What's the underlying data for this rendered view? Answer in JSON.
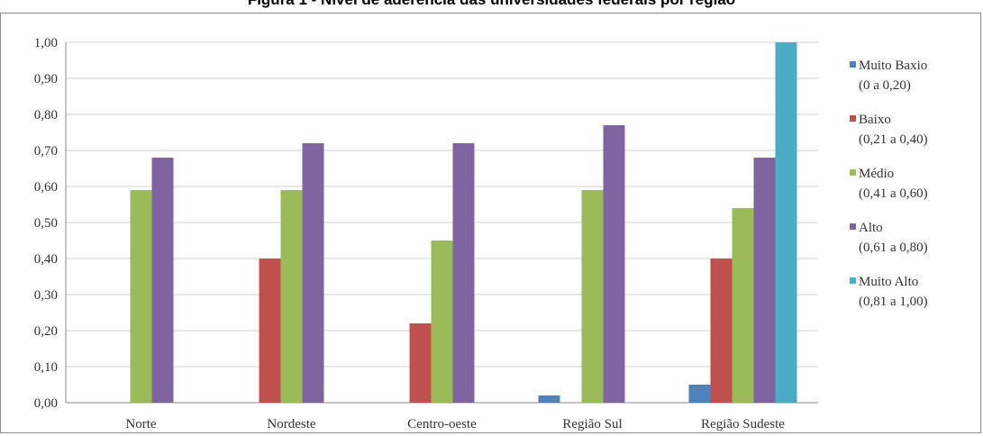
{
  "chart_title": "Figura 1 - Nível de aderência das universidades federais por região",
  "chart_data": {
    "type": "bar",
    "title": "Figura 1 - Nível de aderência das universidades federais por região",
    "xlabel": "",
    "ylabel": "",
    "ylim": [
      0,
      1
    ],
    "yticks": [
      "0,00",
      "0,10",
      "0,20",
      "0,30",
      "0,40",
      "0,50",
      "0,60",
      "0,70",
      "0,80",
      "0,90",
      "1,00"
    ],
    "grid": true,
    "legend_position": "right",
    "categories": [
      "Norte",
      "Nordeste",
      "Centro-oeste",
      "Região Sul",
      "Região Sudeste"
    ],
    "series": [
      {
        "name": "Muito Baxio",
        "range": "(0 a 0,20)",
        "color": "#4f81bd",
        "values": [
          null,
          null,
          null,
          0.02,
          0.05
        ]
      },
      {
        "name": "Baixo",
        "range": "(0,21 a 0,40)",
        "color": "#c0504d",
        "values": [
          null,
          0.4,
          0.22,
          null,
          0.4
        ]
      },
      {
        "name": "Médio",
        "range": "(0,41 a 0,60)",
        "color": "#9bbb59",
        "values": [
          0.59,
          0.59,
          0.45,
          0.59,
          0.54
        ]
      },
      {
        "name": "Alto",
        "range": "(0,61 a 0,80)",
        "color": "#8064a2",
        "values": [
          0.68,
          0.72,
          0.72,
          0.77,
          0.68
        ]
      },
      {
        "name": "Muito Alto",
        "range": "(0,81 a 1,00)",
        "color": "#4bacc6",
        "values": [
          null,
          null,
          null,
          null,
          1.0
        ]
      }
    ]
  }
}
